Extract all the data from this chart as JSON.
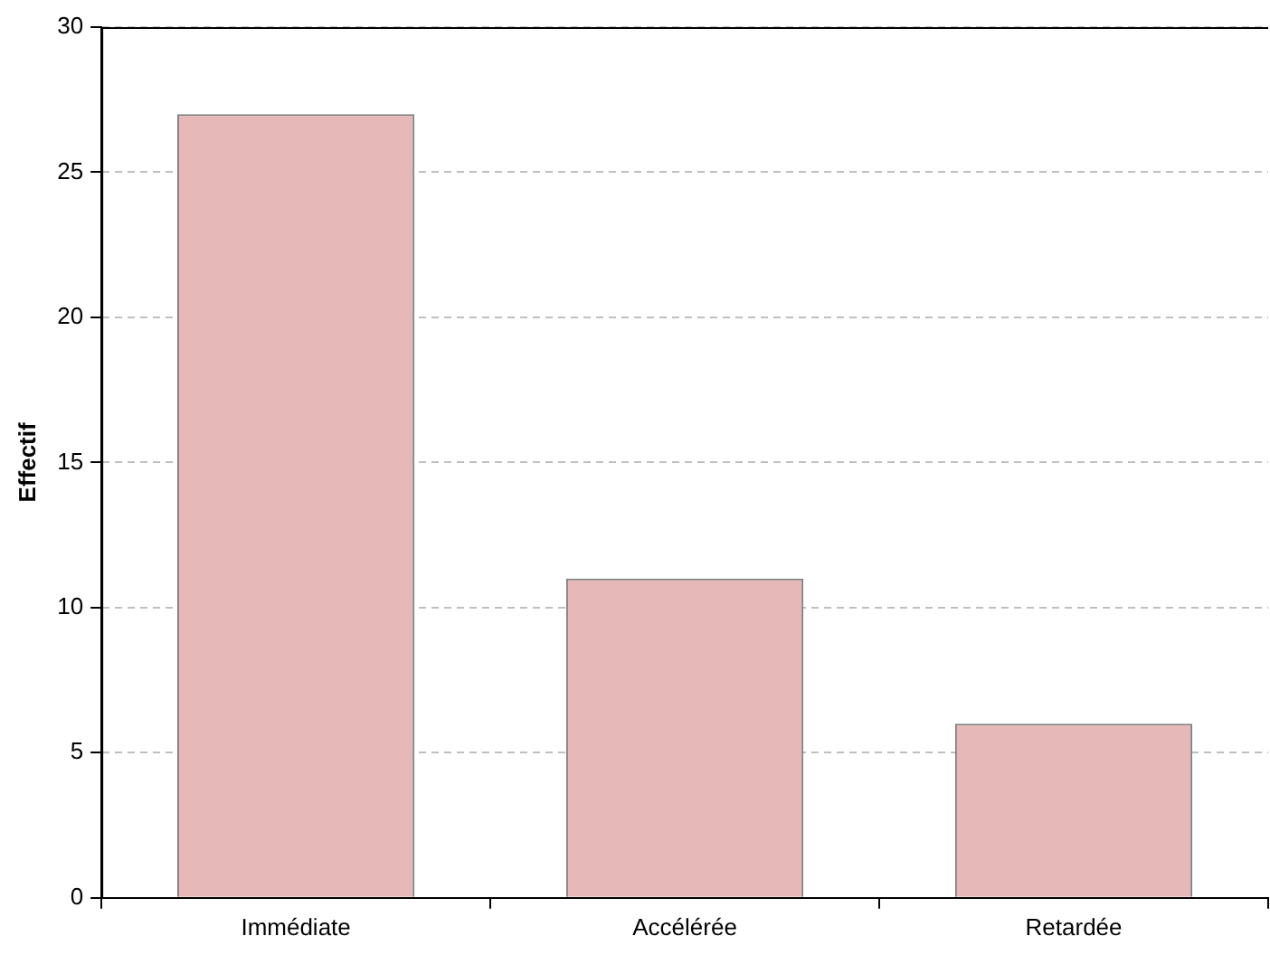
{
  "chart_data": {
    "type": "bar",
    "ylabel": "Effectif",
    "categories": [
      "Immédiate",
      "Accélérée",
      "Retardée"
    ],
    "values": [
      27,
      11,
      6
    ],
    "color": "#e6b8b7",
    "ylim": [
      0,
      30
    ],
    "yticks": [
      0,
      5,
      10,
      15,
      20,
      25,
      30
    ],
    "grid": "y",
    "legend": false
  }
}
